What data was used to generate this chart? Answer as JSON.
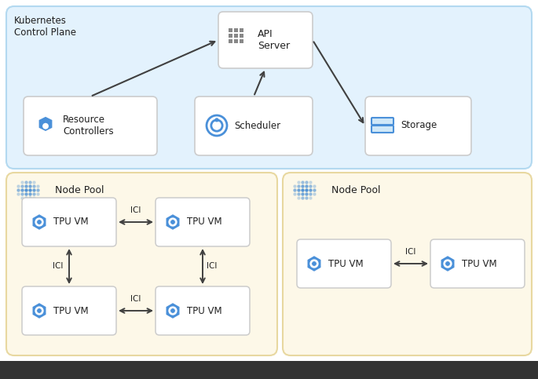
{
  "bg_color": "#ffffff",
  "k8s_panel_color": "#e3f2fd",
  "k8s_panel_border": "#b3d9f0",
  "node_pool_color": "#fdf8e8",
  "node_pool_border": "#e8d8a0",
  "box_color": "#ffffff",
  "box_border": "#cccccc",
  "k8s_title": "Kubernetes\nControl Plane",
  "api_server_label": "API\nServer",
  "resource_controllers_label": "Resource\nControllers",
  "scheduler_label": "Scheduler",
  "storage_label": "Storage",
  "node_pool_label": "Node Pool",
  "tpu_vm_label": "TPU VM",
  "ici_label": "ICI",
  "icon_color": "#4a90d9",
  "text_color": "#202020",
  "arrow_color": "#404040",
  "dot_color": "#4a8fd4",
  "grid_icon_color": "#888888"
}
